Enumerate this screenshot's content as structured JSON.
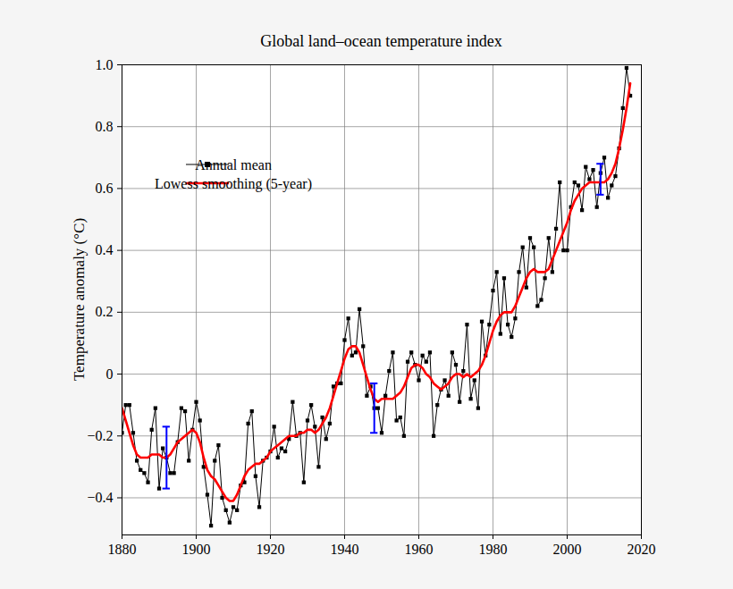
{
  "chart_data": {
    "type": "line",
    "title": "Global land–ocean temperature index",
    "y_label": "Temperature anomaly (°C)",
    "x": [
      1880,
      1881,
      1882,
      1883,
      1884,
      1885,
      1886,
      1887,
      1888,
      1889,
      1890,
      1891,
      1892,
      1893,
      1894,
      1895,
      1896,
      1897,
      1898,
      1899,
      1900,
      1901,
      1902,
      1903,
      1904,
      1905,
      1906,
      1907,
      1908,
      1909,
      1910,
      1911,
      1912,
      1913,
      1914,
      1915,
      1916,
      1917,
      1918,
      1919,
      1920,
      1921,
      1922,
      1923,
      1924,
      1925,
      1926,
      1927,
      1928,
      1929,
      1930,
      1931,
      1932,
      1933,
      1934,
      1935,
      1936,
      1937,
      1938,
      1939,
      1940,
      1941,
      1942,
      1943,
      1944,
      1945,
      1946,
      1947,
      1948,
      1949,
      1950,
      1951,
      1952,
      1953,
      1954,
      1955,
      1956,
      1957,
      1958,
      1959,
      1960,
      1961,
      1962,
      1963,
      1964,
      1965,
      1966,
      1967,
      1968,
      1969,
      1970,
      1971,
      1972,
      1973,
      1974,
      1975,
      1976,
      1977,
      1978,
      1979,
      1980,
      1981,
      1982,
      1983,
      1984,
      1985,
      1986,
      1987,
      1988,
      1989,
      1990,
      1991,
      1992,
      1993,
      1994,
      1995,
      1996,
      1997,
      1998,
      1999,
      2000,
      2001,
      2002,
      2003,
      2004,
      2005,
      2006,
      2007,
      2008,
      2009,
      2010,
      2011,
      2012,
      2013,
      2014,
      2015,
      2016,
      2017
    ],
    "series": [
      {
        "name": "Annual mean",
        "color": "#000000",
        "marker": "square",
        "line_style": "solid",
        "values": [
          -0.19,
          -0.1,
          -0.1,
          -0.19,
          -0.28,
          -0.31,
          -0.32,
          -0.35,
          -0.18,
          -0.11,
          -0.37,
          -0.24,
          -0.27,
          -0.32,
          -0.32,
          -0.22,
          -0.11,
          -0.12,
          -0.28,
          -0.18,
          -0.09,
          -0.15,
          -0.3,
          -0.39,
          -0.49,
          -0.28,
          -0.23,
          -0.4,
          -0.44,
          -0.48,
          -0.43,
          -0.44,
          -0.36,
          -0.35,
          -0.16,
          -0.12,
          -0.33,
          -0.43,
          -0.28,
          -0.27,
          -0.25,
          -0.17,
          -0.27,
          -0.24,
          -0.25,
          -0.21,
          -0.09,
          -0.2,
          -0.19,
          -0.35,
          -0.15,
          -0.1,
          -0.17,
          -0.3,
          -0.14,
          -0.21,
          -0.16,
          -0.04,
          -0.03,
          -0.03,
          0.11,
          0.18,
          0.06,
          0.07,
          0.21,
          0.09,
          -0.07,
          -0.04,
          -0.11,
          -0.11,
          -0.19,
          -0.07,
          0.01,
          0.07,
          -0.15,
          -0.14,
          -0.2,
          0.04,
          0.07,
          0.03,
          -0.02,
          0.06,
          0.04,
          0.07,
          -0.2,
          -0.1,
          -0.05,
          -0.02,
          -0.07,
          0.07,
          0.03,
          -0.09,
          0.01,
          0.16,
          -0.08,
          -0.02,
          -0.11,
          0.17,
          0.06,
          0.16,
          0.27,
          0.33,
          0.13,
          0.31,
          0.16,
          0.12,
          0.18,
          0.33,
          0.41,
          0.28,
          0.44,
          0.41,
          0.22,
          0.24,
          0.31,
          0.44,
          0.33,
          0.47,
          0.62,
          0.4,
          0.4,
          0.54,
          0.62,
          0.61,
          0.53,
          0.67,
          0.63,
          0.66,
          0.54,
          0.65,
          0.7,
          0.57,
          0.61,
          0.64,
          0.73,
          0.86,
          0.99,
          0.9
        ]
      },
      {
        "name": "Lowess smoothing (5-year)",
        "color": "#ff0000",
        "line_style": "solid",
        "values": [
          -0.11,
          -0.15,
          -0.19,
          -0.23,
          -0.26,
          -0.27,
          -0.27,
          -0.27,
          -0.26,
          -0.26,
          -0.26,
          -0.27,
          -0.27,
          -0.26,
          -0.24,
          -0.22,
          -0.21,
          -0.2,
          -0.19,
          -0.18,
          -0.19,
          -0.22,
          -0.27,
          -0.31,
          -0.33,
          -0.34,
          -0.36,
          -0.38,
          -0.4,
          -0.41,
          -0.41,
          -0.39,
          -0.36,
          -0.33,
          -0.31,
          -0.3,
          -0.29,
          -0.29,
          -0.28,
          -0.27,
          -0.25,
          -0.24,
          -0.23,
          -0.22,
          -0.21,
          -0.2,
          -0.2,
          -0.2,
          -0.19,
          -0.19,
          -0.18,
          -0.18,
          -0.19,
          -0.18,
          -0.16,
          -0.14,
          -0.11,
          -0.07,
          -0.03,
          0.01,
          0.05,
          0.08,
          0.09,
          0.09,
          0.07,
          0.03,
          -0.01,
          -0.05,
          -0.08,
          -0.09,
          -0.08,
          -0.08,
          -0.08,
          -0.08,
          -0.07,
          -0.06,
          -0.04,
          -0.01,
          0.02,
          0.03,
          0.03,
          0.02,
          0.0,
          -0.01,
          -0.03,
          -0.04,
          -0.05,
          -0.04,
          -0.03,
          -0.01,
          0.0,
          0.0,
          -0.01,
          0.0,
          -0.01,
          0.0,
          0.01,
          0.03,
          0.06,
          0.1,
          0.14,
          0.17,
          0.19,
          0.2,
          0.2,
          0.2,
          0.22,
          0.25,
          0.28,
          0.31,
          0.33,
          0.34,
          0.33,
          0.33,
          0.33,
          0.34,
          0.37,
          0.4,
          0.43,
          0.46,
          0.49,
          0.53,
          0.56,
          0.58,
          0.6,
          0.61,
          0.62,
          0.62,
          0.62,
          0.62,
          0.62,
          0.63,
          0.65,
          0.68,
          0.73,
          0.79,
          0.86,
          0.94
        ]
      }
    ],
    "error_bars": {
      "color": "#0000ff",
      "x": [
        1892,
        1948,
        2009
      ],
      "low": [
        -0.37,
        -0.19,
        0.58
      ],
      "high": [
        -0.17,
        -0.03,
        0.68
      ]
    },
    "xlim": [
      1880,
      2020
    ],
    "xticks": [
      1880,
      1900,
      1920,
      1940,
      1960,
      1980,
      2000,
      2020
    ],
    "ylim": [
      -0.52,
      1.0
    ],
    "yticks": [
      {
        "value": -0.4,
        "label": "−0.4"
      },
      {
        "value": -0.2,
        "label": "−0.2"
      },
      0,
      0.2,
      0.4,
      0.6,
      0.8,
      {
        "value": 1,
        "label": "1.0"
      }
    ],
    "grid": true,
    "legend": "upper left"
  }
}
